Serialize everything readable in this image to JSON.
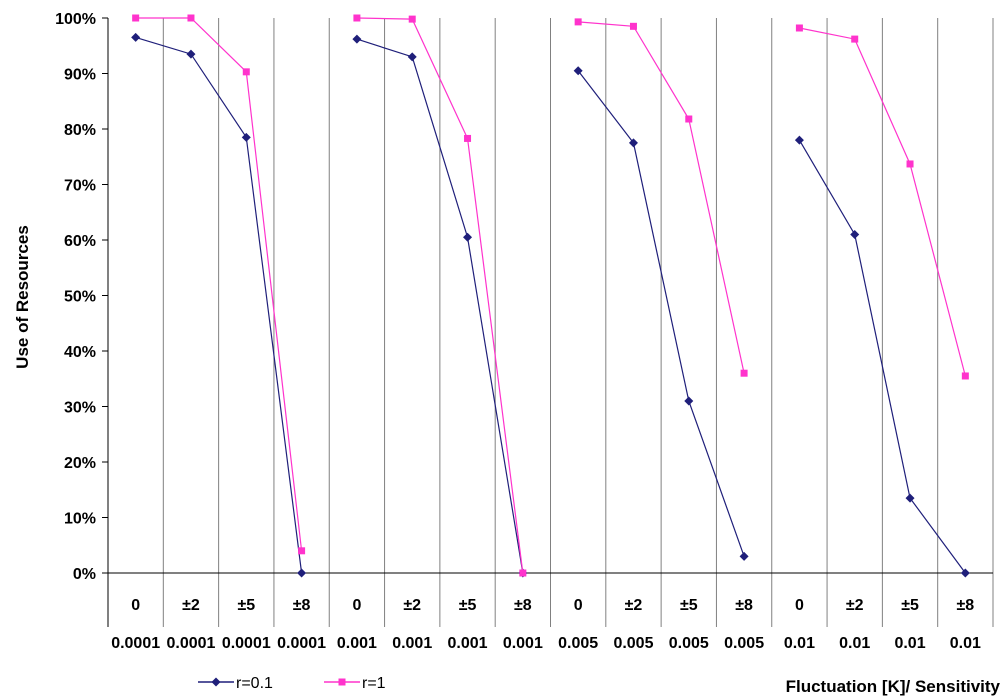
{
  "chart_data": {
    "type": "line",
    "ylabel": "Use of Resources",
    "xlabel": "Fluctuation [K]/ Sensitivity",
    "ylim": [
      0,
      100
    ],
    "yticks": [
      "0%",
      "10%",
      "20%",
      "30%",
      "40%",
      "50%",
      "60%",
      "70%",
      "80%",
      "90%",
      "100%"
    ],
    "fluctuation_labels": [
      "0",
      "±2",
      "±5",
      "±8",
      "0",
      "±2",
      "±5",
      "±8",
      "0",
      "±2",
      "±5",
      "±8",
      "0",
      "±2",
      "±5",
      "±8"
    ],
    "sensitivity_labels": [
      "0.0001",
      "0.0001",
      "0.0001",
      "0.0001",
      "0.001",
      "0.001",
      "0.001",
      "0.001",
      "0.005",
      "0.005",
      "0.005",
      "0.005",
      "0.01",
      "0.01",
      "0.01",
      "0.01"
    ],
    "series": [
      {
        "name": "r=0.1",
        "color": "#1f1f7a",
        "marker": "diamond",
        "groups": [
          [
            96.5,
            93.5,
            78.5,
            0
          ],
          [
            96.2,
            93,
            60.5,
            0
          ],
          [
            90.5,
            77.5,
            31,
            3
          ],
          [
            78,
            61,
            13.5,
            0
          ]
        ]
      },
      {
        "name": "r=1",
        "color": "#ff33cc",
        "marker": "square",
        "groups": [
          [
            100,
            100,
            90.3,
            4
          ],
          [
            100,
            99.8,
            78.3,
            0
          ],
          [
            99.3,
            98.5,
            81.8,
            36
          ],
          [
            98.2,
            96.2,
            73.7,
            35.5
          ]
        ]
      }
    ],
    "grid": "vertical",
    "legend_position": "bottom-left"
  }
}
